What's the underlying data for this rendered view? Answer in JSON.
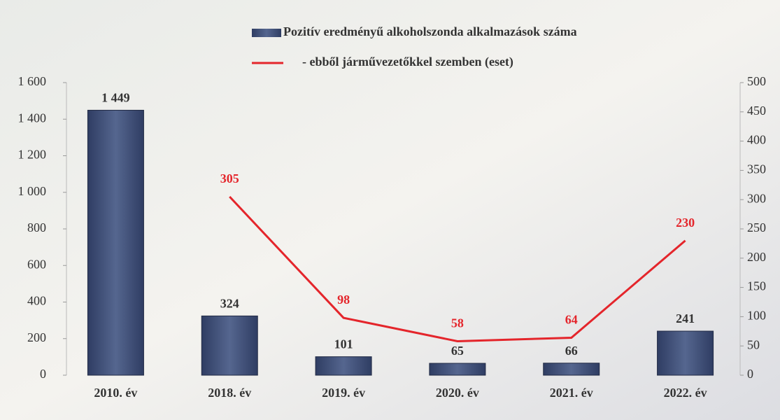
{
  "chart_data": {
    "type": "combo",
    "categories": [
      "2010. év",
      "2018. év",
      "2019. év",
      "2020. év",
      "2021. év",
      "2022. év"
    ],
    "series": [
      {
        "name": "Pozitív eredményű alkoholszonda alkalmazások száma",
        "type": "bar",
        "color": "#41517c",
        "values": [
          1449,
          324,
          101,
          65,
          66,
          241
        ],
        "value_labels": [
          "1 449",
          "324",
          "101",
          "65",
          "66",
          "241"
        ]
      },
      {
        "name": "- ebből járművezetőkkel szemben (eset)",
        "type": "line",
        "color": "#e4252b",
        "axis": "y2",
        "values": [
          null,
          305,
          98,
          58,
          64,
          230
        ]
      }
    ],
    "ylim": [
      0,
      1600
    ],
    "yticks": [
      0,
      200,
      400,
      600,
      800,
      {
        "value": 1000,
        "label": "1 000"
      },
      {
        "value": 1200,
        "label": "1 200"
      },
      {
        "value": 1400,
        "label": "1 400"
      },
      {
        "value": 1600,
        "label": "1 600"
      }
    ],
    "y2lim": [
      0,
      500
    ],
    "y2ticks": [
      0,
      50,
      100,
      150,
      200,
      250,
      300,
      350,
      400,
      450,
      500
    ],
    "grid": false
  }
}
